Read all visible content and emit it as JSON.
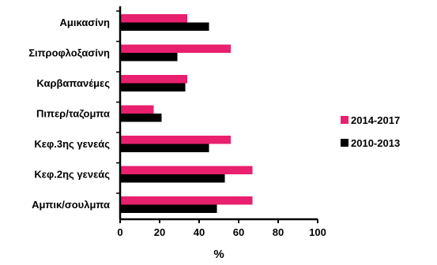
{
  "chart_data": {
    "type": "bar",
    "orientation": "horizontal",
    "categories": [
      "Αμικασίνη",
      "Σιπροφλοξασίνη",
      "Καρβαπανέμες",
      "Πιπερ/ταζομπα",
      "Κεφ.3ης γενεάς",
      "Κεφ.2ης γενεάς",
      "Αμπικ/σουλμπα"
    ],
    "series": [
      {
        "name": "2014-2017",
        "color": "#e8206e",
        "values": [
          34,
          56,
          34,
          17,
          56,
          67,
          67
        ]
      },
      {
        "name": "2010-2013",
        "color": "#000000",
        "values": [
          45,
          29,
          33,
          21,
          45,
          53,
          49
        ]
      }
    ],
    "xlabel": "%",
    "xlim": [
      0,
      100
    ],
    "xticks": [
      "0",
      "20",
      "40",
      "60",
      "80",
      "100"
    ],
    "grid": false,
    "legend_position": "right"
  }
}
